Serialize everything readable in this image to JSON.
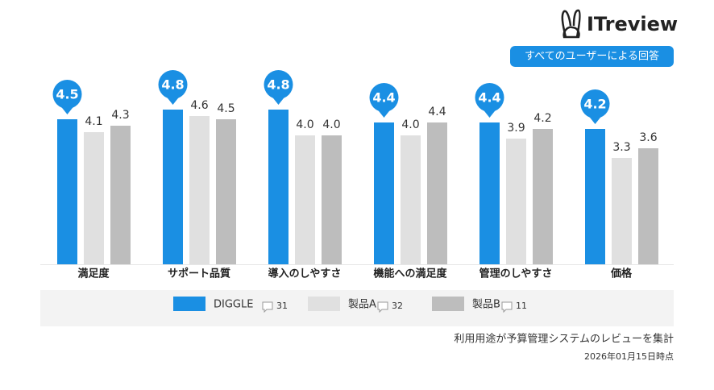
{
  "logo": "ITreview",
  "badge": "すべてのユーザーによる回答",
  "footnote": "利用用途が予算管理システムのレビューを集計",
  "date": "2026年01月15日時点",
  "chart_data": {
    "type": "bar",
    "categories": [
      "満足度",
      "サポート品質",
      "導入のしやすさ",
      "機能への満足度",
      "管理のしやすさ",
      "価格"
    ],
    "ylim": [
      0,
      5
    ],
    "series": [
      {
        "name": "DIGGLE",
        "color": "#1a8fe3",
        "count": 31,
        "values": [
          4.5,
          4.8,
          4.8,
          4.4,
          4.4,
          4.2
        ],
        "value_labels": [
          "4.5",
          "4.8",
          "4.8",
          "4.4",
          "4.4",
          "4.2"
        ]
      },
      {
        "name": "製品A",
        "color": "#e0e0e0",
        "count": 32,
        "values": [
          4.1,
          4.6,
          4.0,
          4.0,
          3.9,
          3.3
        ],
        "value_labels": [
          "4.1",
          "4.6",
          "4.0",
          "4.0",
          "3.9",
          "3.3"
        ]
      },
      {
        "name": "製品B",
        "color": "#bdbdbd",
        "count": 11,
        "values": [
          4.3,
          4.5,
          4.0,
          4.4,
          4.2,
          3.6
        ],
        "value_labels": [
          "4.3",
          "4.5",
          "4.0",
          "4.4",
          "4.2",
          "3.6"
        ]
      }
    ]
  }
}
